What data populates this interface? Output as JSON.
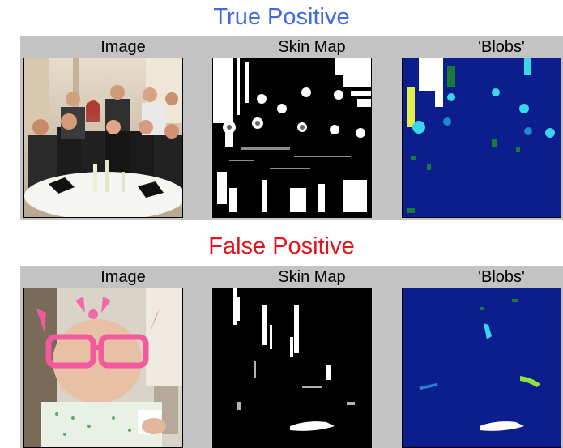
{
  "sections": [
    {
      "title": "True Positive",
      "title_color": "#4169e1",
      "panels": [
        {
          "title": "Image",
          "content": "group photo of people at a dinner table"
        },
        {
          "title": "Skin Map",
          "content": "binary skin detection map"
        },
        {
          "title": "'Blobs'",
          "content": "labeled skin blob regions"
        }
      ]
    },
    {
      "title": "False Positive",
      "title_color": "#e3141b",
      "panels": [
        {
          "title": "Image",
          "content": "baby wearing pink glasses"
        },
        {
          "title": "Skin Map",
          "content": "binary skin detection map"
        },
        {
          "title": "'Blobs'",
          "content": "labeled skin blob regions"
        }
      ]
    }
  ],
  "colors": {
    "panel_bg": "#c3c3c3",
    "blob_bg": "#0c1d8e"
  }
}
